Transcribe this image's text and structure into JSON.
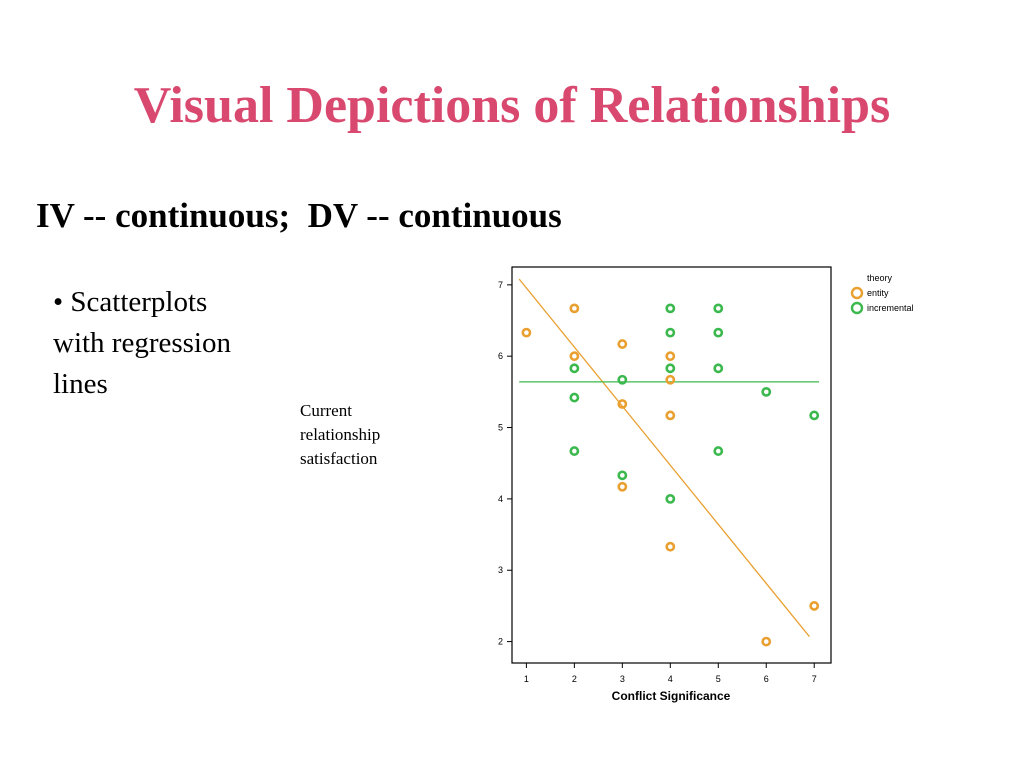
{
  "slide": {
    "title": "Visual Depictions of Relationships",
    "subtitle": "IV -- continuous;  DV -- continuous",
    "bullet_lines": [
      "• Scatterplots",
      "with regression",
      "lines"
    ],
    "y_axis_label_lines": [
      "Current",
      "relationship",
      "satisfaction"
    ]
  },
  "chart_data": {
    "type": "scatter",
    "xlabel": "Conflict Significance",
    "ylabel": "Current relationship satisfaction",
    "xlim": [
      0.7,
      7.35
    ],
    "ylim": [
      1.7,
      7.25
    ],
    "xticks": [
      1,
      2,
      3,
      4,
      5,
      6,
      7
    ],
    "yticks": [
      2,
      3,
      4,
      5,
      6,
      7
    ],
    "legend": {
      "title": "theory",
      "position": "top-right outside"
    },
    "series": [
      {
        "name": "entity",
        "color": "#e9a030",
        "points": [
          [
            1,
            6.33
          ],
          [
            2,
            6.67
          ],
          [
            2,
            6.0
          ],
          [
            3,
            6.17
          ],
          [
            3,
            5.33
          ],
          [
            3,
            4.17
          ],
          [
            4,
            6.0
          ],
          [
            4,
            5.67
          ],
          [
            4,
            5.17
          ],
          [
            4,
            3.33
          ],
          [
            6,
            2.0
          ],
          [
            7,
            2.5
          ]
        ],
        "regression": {
          "x": [
            0.85,
            6.9
          ],
          "y": [
            7.08,
            2.07
          ]
        }
      },
      {
        "name": "incremental",
        "color": "#3cb94e",
        "points": [
          [
            2,
            5.83
          ],
          [
            2,
            5.42
          ],
          [
            2,
            4.67
          ],
          [
            3,
            5.67
          ],
          [
            3,
            4.33
          ],
          [
            4,
            6.67
          ],
          [
            4,
            6.33
          ],
          [
            4,
            5.83
          ],
          [
            4,
            4.0
          ],
          [
            5,
            6.67
          ],
          [
            5,
            6.33
          ],
          [
            5,
            5.83
          ],
          [
            5,
            4.67
          ],
          [
            6,
            5.5
          ],
          [
            7,
            5.17
          ]
        ],
        "regression": {
          "x": [
            0.85,
            7.1
          ],
          "y": [
            5.64,
            5.64
          ]
        }
      }
    ]
  }
}
